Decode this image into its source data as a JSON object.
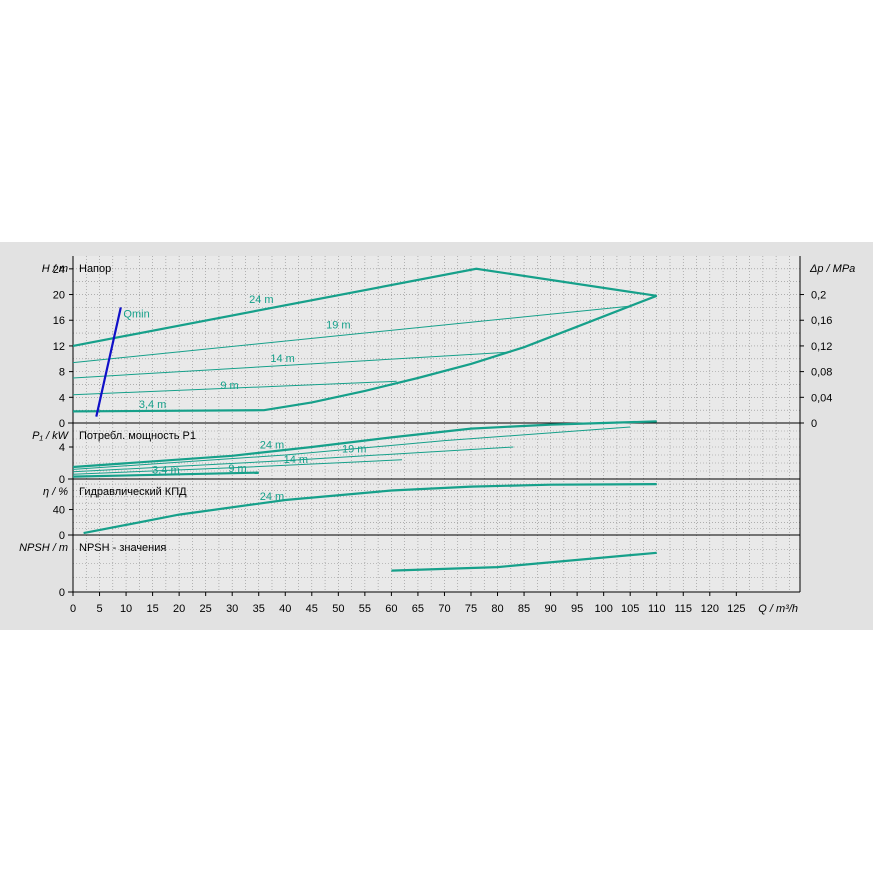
{
  "chart_data": [
    {
      "type": "line",
      "panel": "head",
      "title": "Напор",
      "ylabel": "H / m",
      "y2label": "Δp / MPa",
      "ylim": [
        0,
        26
      ],
      "yticks": [
        "0",
        "4",
        "8",
        "12",
        "16",
        "20",
        "24"
      ],
      "y2ticks": [
        "0",
        "0,04",
        "0,08",
        "0,12",
        "0,16",
        "0,2"
      ],
      "colors": {
        "curve": "#16a08a",
        "qmin": "#1010c8"
      },
      "series": [
        {
          "name": "24 m",
          "thick": true,
          "x": [
            0,
            76,
            110
          ],
          "y": [
            12,
            24,
            19.8
          ]
        },
        {
          "name": "19 m",
          "thick": false,
          "x": [
            0,
            105
          ],
          "y": [
            9.4,
            18.2
          ]
        },
        {
          "name": "14 m",
          "thick": false,
          "x": [
            0,
            82
          ],
          "y": [
            7,
            11
          ]
        },
        {
          "name": "9 m",
          "thick": false,
          "x": [
            0,
            61
          ],
          "y": [
            4.4,
            6.5
          ]
        },
        {
          "name": "3,4 m",
          "thick": true,
          "x": [
            0,
            36,
            45,
            55,
            65,
            75,
            85,
            95,
            110
          ],
          "y": [
            1.8,
            2,
            3.2,
            5,
            7,
            9.2,
            11.8,
            15,
            19.8
          ]
        },
        {
          "name": "Qmin",
          "thick": true,
          "x": [
            4.4,
            9
          ],
          "y": [
            1,
            18
          ]
        }
      ]
    },
    {
      "type": "line",
      "panel": "power",
      "title": "Потребл. мощность P1",
      "ylabel": "P₁ / kW",
      "ylim": [
        0,
        7
      ],
      "yticks": [
        "0",
        "4"
      ],
      "series": [
        {
          "name": "24 m",
          "thick": true,
          "x": [
            0,
            30,
            45,
            60,
            75,
            90,
            110
          ],
          "y": [
            1.5,
            2.9,
            4.0,
            5.2,
            6.3,
            6.8,
            7.2
          ]
        },
        {
          "name": "19 m",
          "thick": false,
          "x": [
            0,
            40,
            70,
            105
          ],
          "y": [
            1.2,
            3.0,
            4.8,
            6.5
          ]
        },
        {
          "name": "14 m",
          "thick": false,
          "x": [
            0,
            40,
            60,
            83
          ],
          "y": [
            0.9,
            2.3,
            3.1,
            4.0
          ]
        },
        {
          "name": "9 m",
          "thick": false,
          "x": [
            0,
            30,
            62
          ],
          "y": [
            0.6,
            1.4,
            2.4
          ]
        },
        {
          "name": "3,4 m",
          "thick": true,
          "x": [
            0,
            35
          ],
          "y": [
            0.3,
            0.8
          ]
        }
      ]
    },
    {
      "type": "line",
      "panel": "efficiency",
      "title": "Гидравлический КПД",
      "ylabel": "η / %",
      "ylim": [
        0,
        88
      ],
      "yticks": [
        "0",
        "40"
      ],
      "series": [
        {
          "name": "24 m",
          "thick": true,
          "x": [
            2,
            20,
            40,
            60,
            75,
            90,
            110
          ],
          "y": [
            3,
            32,
            55,
            70,
            76,
            79,
            80
          ]
        }
      ]
    },
    {
      "type": "line",
      "panel": "npsh",
      "title": "NPSH - значения",
      "ylabel": "NPSH / m",
      "ylim": [
        0,
        8
      ],
      "yticks": [
        "0"
      ],
      "series": [
        {
          "name": "NPSH",
          "thick": true,
          "x": [
            60,
            80,
            110
          ],
          "y": [
            3,
            3.5,
            5.5
          ]
        }
      ]
    }
  ],
  "x_axis": {
    "label": "Q / m³/h",
    "xlim": [
      0,
      137
    ],
    "ticks": [
      "0",
      "5",
      "10",
      "15",
      "20",
      "25",
      "30",
      "35",
      "40",
      "45",
      "50",
      "55",
      "60",
      "65",
      "70",
      "75",
      "80",
      "85",
      "90",
      "95",
      "100",
      "105",
      "110",
      "115",
      "120",
      "125"
    ]
  },
  "annotations": {
    "qmin": "Qmin"
  }
}
